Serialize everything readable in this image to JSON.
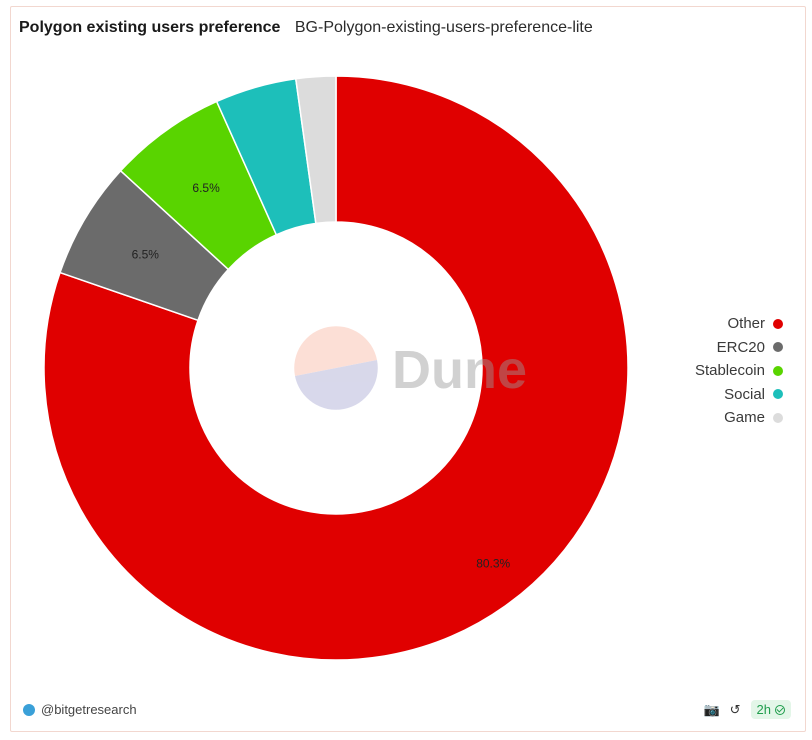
{
  "header": {
    "title": "Polygon existing users preference",
    "subtitle": "BG-Polygon-existing-users-preference-lite"
  },
  "chart_data": {
    "type": "pie",
    "donut": true,
    "categories": [
      "Other",
      "ERC20",
      "Stablecoin",
      "Social",
      "Game"
    ],
    "values": [
      80.3,
      6.5,
      6.5,
      4.5,
      2.2
    ],
    "colors": [
      "#e00000",
      "#6b6b6b",
      "#59d400",
      "#1dbfba",
      "#dcdcdc"
    ],
    "data_labels": [
      "80.3%",
      "6.5%",
      "6.5%",
      "",
      ""
    ],
    "legend": "right"
  },
  "watermark": {
    "text": "Dune"
  },
  "footer": {
    "author": "@bitgetresearch",
    "refresh": "2h",
    "icons": [
      "camera-icon",
      "refresh-icon",
      "check-circle-icon"
    ]
  }
}
